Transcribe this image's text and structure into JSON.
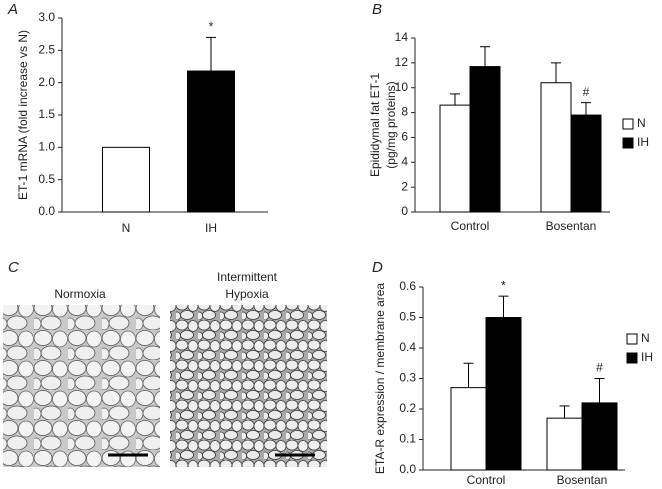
{
  "chart_data": [
    {
      "type": "bar",
      "panel": "A",
      "ylabel": [
        "ET-1 mRNA (fold increase vs N)"
      ],
      "categories": [
        "N",
        "IH"
      ],
      "values": [
        1.0,
        2.18
      ],
      "errors": [
        0,
        0.52
      ],
      "colors": [
        "#ffffff",
        "#000000"
      ],
      "value_annotations": [
        null,
        "*"
      ],
      "ylim": [
        0,
        3.0
      ],
      "yticks": [
        {
          "value": 0,
          "label": "0.0"
        },
        0.5,
        {
          "value": 1,
          "label": "1.0"
        },
        1.5,
        {
          "value": 2,
          "label": "2.0"
        },
        2.5,
        {
          "value": 3,
          "label": "3.0"
        }
      ]
    },
    {
      "type": "bar",
      "panel": "B",
      "ylabel": [
        "Epididymal fat ET-1",
        "(pg/mg proteins)"
      ],
      "categories": [
        "Control",
        "Bosentan"
      ],
      "series": [
        {
          "name": "N",
          "color": "#ffffff",
          "values": [
            8.6,
            10.4
          ],
          "errors": [
            0.9,
            1.6
          ],
          "annotations": [
            null,
            null
          ]
        },
        {
          "name": "IH",
          "color": "#000000",
          "values": [
            11.7,
            7.8
          ],
          "errors": [
            1.6,
            1.0
          ],
          "annotations": [
            null,
            "#"
          ]
        }
      ],
      "legend": "right",
      "ylim": [
        0,
        14
      ],
      "yticks": [
        0,
        2,
        4,
        6,
        8,
        10,
        12,
        14
      ]
    },
    {
      "type": "image",
      "panel": "C",
      "images": [
        [
          "Normoxia"
        ],
        [
          "Intermittent",
          "Hypoxia"
        ]
      ]
    },
    {
      "type": "bar",
      "panel": "D",
      "ylabel": [
        "ETA-R expression / membrane area"
      ],
      "categories": [
        "Control",
        "Bosentan"
      ],
      "series": [
        {
          "name": "N",
          "color": "#ffffff",
          "values": [
            0.27,
            0.17
          ],
          "errors": [
            0.08,
            0.04
          ],
          "annotations": [
            null,
            null
          ]
        },
        {
          "name": "IH",
          "color": "#000000",
          "values": [
            0.5,
            0.22
          ],
          "errors": [
            0.07,
            0.08
          ],
          "annotations": [
            "*",
            "#"
          ]
        }
      ],
      "legend": "right",
      "ylim": [
        0,
        0.6
      ],
      "yticks": [
        {
          "value": 0,
          "label": "0.0"
        },
        0.1,
        0.2,
        0.3,
        0.4,
        0.5,
        0.6
      ]
    }
  ]
}
